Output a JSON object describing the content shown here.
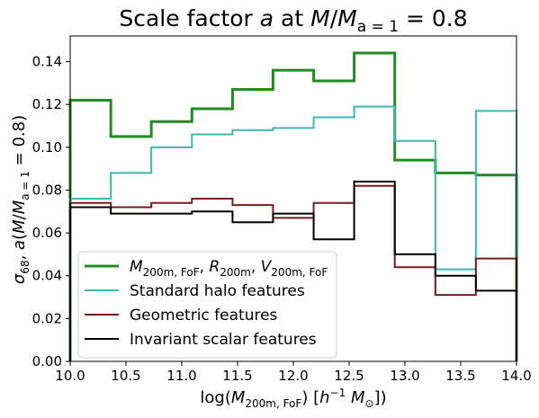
{
  "chart_data": {
    "type": "step",
    "title": "Scale factor a at M/M_{a=1} = 0.8",
    "xlabel": "log(M_{200m,FoF}) [h^{-1} M_⊙])",
    "ylabel": "σ_68, a(M/M_{a=1} = 0.8)",
    "xlim": [
      10.0,
      14.0
    ],
    "ylim": [
      0.0,
      0.152
    ],
    "xticks": [
      "10.0",
      "10.5",
      "11.0",
      "11.5",
      "12.0",
      "12.5",
      "13.0",
      "13.5",
      "14.0"
    ],
    "xtick_values": [
      10.0,
      10.5,
      11.0,
      11.5,
      12.0,
      12.5,
      13.0,
      13.5,
      14.0
    ],
    "yticks": [
      "0.00",
      "0.02",
      "0.04",
      "0.06",
      "0.08",
      "0.10",
      "0.12",
      "0.14"
    ],
    "ytick_values": [
      0.0,
      0.02,
      0.04,
      0.06,
      0.08,
      0.1,
      0.12,
      0.14
    ],
    "bin_edges": [
      10.0,
      10.364,
      10.727,
      11.091,
      11.455,
      11.818,
      12.182,
      12.545,
      12.909,
      13.273,
      13.636,
      14.0
    ],
    "grid": false,
    "legend_position": "lower-left",
    "series": [
      {
        "name": "M_{200m,FoF}, R_{200m}, V_{200m,FoF}",
        "color": "#228B22",
        "values": [
          0.122,
          0.105,
          0.112,
          0.118,
          0.127,
          0.136,
          0.131,
          0.144,
          0.094,
          0.088,
          0.087
        ]
      },
      {
        "name": "Standard halo features",
        "color": "#3CB8B2",
        "values": [
          0.076,
          0.088,
          0.1,
          0.106,
          0.108,
          0.109,
          0.114,
          0.119,
          0.103,
          0.043,
          0.117
        ]
      },
      {
        "name": "Geometric features",
        "color": "#7B1A1A",
        "values": [
          0.074,
          0.072,
          0.074,
          0.076,
          0.073,
          0.067,
          0.074,
          0.082,
          0.044,
          0.031,
          0.048
        ]
      },
      {
        "name": "Invariant scalar features",
        "color": "#000000",
        "values": [
          0.072,
          0.069,
          0.069,
          0.07,
          0.065,
          0.069,
          0.057,
          0.084,
          0.05,
          0.04,
          0.033
        ]
      }
    ]
  }
}
